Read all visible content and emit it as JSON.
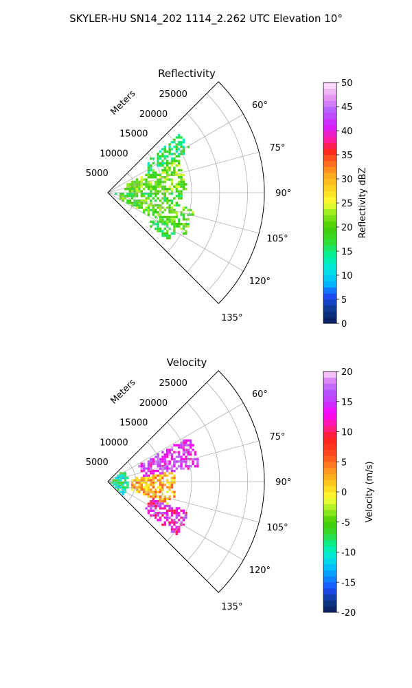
{
  "figure": {
    "title": "SKYLER-HU  SN14_202  1114_2.262 UTC Elevation 10°"
  },
  "chart_data": [
    {
      "type": "polar-sector",
      "title": "Reflectivity",
      "radial_label": "Meters",
      "range_ticks": [
        "5000",
        "10000",
        "15000",
        "20000",
        "25000"
      ],
      "range_values": [
        5000,
        10000,
        15000,
        20000,
        25000
      ],
      "rmax": 28000,
      "azimuth_ticks": [
        "60°",
        "75°",
        "90°",
        "105°",
        "120°",
        "135°"
      ],
      "azimuth_values": [
        60,
        75,
        90,
        105,
        120,
        135
      ],
      "azimuth_range": [
        45,
        135
      ],
      "colorbar": {
        "label": "Reflectivity dBZ",
        "ticks": [
          "0",
          "5",
          "10",
          "15",
          "20",
          "25",
          "30",
          "35",
          "40",
          "45",
          "50"
        ],
        "range": [
          0,
          50
        ]
      },
      "field_extent_m": 16500,
      "regions": [
        {
          "az": [
            50,
            62
          ],
          "r": [
            8000,
            16500
          ],
          "value": 16
        },
        {
          "az": [
            62,
            88
          ],
          "r": [
            3000,
            14000
          ],
          "value": 21
        },
        {
          "az": [
            88,
            100
          ],
          "r": [
            1000,
            13000
          ],
          "value": 18
        },
        {
          "az": [
            100,
            118
          ],
          "r": [
            2000,
            15500
          ],
          "value": 20
        },
        {
          "az": [
            118,
            128
          ],
          "r": [
            9000,
            14000
          ],
          "value": 18
        }
      ]
    },
    {
      "type": "polar-sector",
      "title": "Velocity",
      "radial_label": "Meters",
      "range_ticks": [
        "5000",
        "10000",
        "15000",
        "20000",
        "25000"
      ],
      "range_values": [
        5000,
        10000,
        15000,
        20000,
        25000
      ],
      "rmax": 28000,
      "azimuth_ticks": [
        "60°",
        "75°",
        "90°",
        "105°",
        "120°",
        "135°"
      ],
      "azimuth_values": [
        60,
        75,
        90,
        105,
        120,
        135
      ],
      "azimuth_range": [
        45,
        135
      ],
      "colorbar": {
        "label": "Velocity (m/s)",
        "ticks": [
          "-20",
          "-15",
          "-10",
          "-5",
          "0",
          "5",
          "10",
          "15",
          "20"
        ],
        "range": [
          -20,
          20
        ]
      },
      "field_extent_m": 16500,
      "regions": [
        {
          "az": [
            45,
            135
          ],
          "r": [
            0,
            3500
          ],
          "value": -9
        },
        {
          "az": [
            60,
            80
          ],
          "r": [
            6000,
            16500
          ],
          "value": 15
        },
        {
          "az": [
            80,
            110
          ],
          "r": [
            4000,
            12000
          ],
          "value": 2
        },
        {
          "az": [
            110,
            128
          ],
          "r": [
            8000,
            15500
          ],
          "value": 13
        }
      ]
    }
  ]
}
